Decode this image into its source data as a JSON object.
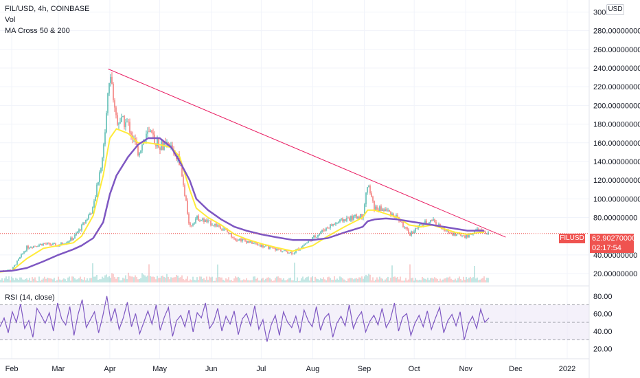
{
  "legend": {
    "symbol_line": "FIL/USD, 4h, COINBASE",
    "volume": "Vol",
    "ma": "MA Cross 50 & 200",
    "rsi": "RSI (14, close)"
  },
  "price_axis": {
    "currency_badge": "USD",
    "labels": [
      "300.00000000",
      "280.00000000",
      "260.00000000",
      "240.00000000",
      "220.00000000",
      "200.00000000",
      "180.00000000",
      "160.00000000",
      "140.00000000",
      "120.00000000",
      "100.00000000",
      "80.00000000",
      "40.00000000",
      "20.00000000"
    ]
  },
  "last_price": {
    "symbol_tag": "FILUSD",
    "value": "62.90270000",
    "countdown": "02:17:54"
  },
  "rsi_axis": {
    "labels": [
      "80.00",
      "60.00",
      "40.00",
      "20.00"
    ]
  },
  "time_axis": {
    "labels": [
      "Feb",
      "Mar",
      "Apr",
      "May",
      "Jun",
      "Jul",
      "Aug",
      "Sep",
      "Oct",
      "Nov",
      "Dec",
      "2022"
    ]
  },
  "colors": {
    "up": "#26a69a",
    "down": "#ef5350",
    "ma50": "#ffeb3b",
    "ma200": "#7e57c2",
    "trendline": "#e91e63",
    "rsi": "#7e57c2",
    "rsi_band": "#ede7f6"
  },
  "chart_data": [
    {
      "type": "line",
      "title": "FIL/USD, 4h, COINBASE",
      "x": [
        "2021-01-20",
        "2021-02-01",
        "2021-02-10",
        "2021-02-20",
        "2021-03-01",
        "2021-03-10",
        "2021-03-15",
        "2021-03-22",
        "2021-03-28",
        "2021-04-01",
        "2021-04-05",
        "2021-04-12",
        "2021-04-18",
        "2021-04-24",
        "2021-05-01",
        "2021-05-08",
        "2021-05-13",
        "2021-05-19",
        "2021-05-23",
        "2021-05-30",
        "2021-06-07",
        "2021-06-15",
        "2021-06-22",
        "2021-07-01",
        "2021-07-10",
        "2021-07-20",
        "2021-08-01",
        "2021-08-10",
        "2021-08-20",
        "2021-08-31",
        "2021-09-03",
        "2021-09-07",
        "2021-09-14",
        "2021-09-21",
        "2021-09-28",
        "2021-10-05",
        "2021-10-12",
        "2021-10-19",
        "2021-10-26",
        "2021-11-02",
        "2021-11-09",
        "2021-11-12"
      ],
      "series": [
        {
          "name": "FILUSD",
          "values": [
            22,
            24,
            48,
            52,
            50,
            58,
            70,
            90,
            150,
            236,
            185,
            180,
            150,
            170,
            158,
            155,
            140,
            70,
            80,
            75,
            70,
            58,
            55,
            50,
            46,
            42,
            58,
            70,
            78,
            82,
            115,
            90,
            88,
            80,
            62,
            72,
            78,
            66,
            62,
            60,
            68,
            62.9
          ]
        },
        {
          "name": "MA 50",
          "values": [
            21,
            23,
            36,
            47,
            50,
            53,
            60,
            82,
            125,
            165,
            175,
            170,
            160,
            160,
            158,
            155,
            145,
            110,
            90,
            80,
            72,
            62,
            57,
            52,
            48,
            44,
            50,
            60,
            70,
            80,
            88,
            88,
            84,
            80,
            72,
            70,
            72,
            68,
            64,
            62,
            64,
            64
          ]
        },
        {
          "name": "MA 200",
          "values": [
            22,
            23,
            26,
            33,
            40,
            46,
            50,
            58,
            75,
            105,
            125,
            145,
            158,
            165,
            165,
            155,
            140,
            120,
            100,
            88,
            78,
            70,
            66,
            62,
            59,
            56,
            56,
            58,
            64,
            70,
            76,
            78,
            79,
            78,
            76,
            74,
            72,
            70,
            68,
            66,
            66,
            66
          ]
        }
      ],
      "annotations": [
        {
          "type": "trendline",
          "from": [
            "2021-03-31",
            239
          ],
          "to": [
            "2021-11-25",
            59
          ]
        },
        {
          "type": "horizontal-line",
          "value": 62.9
        }
      ],
      "ylim": [
        12,
        304
      ],
      "y_ticks": [
        20,
        40,
        80,
        100,
        120,
        140,
        160,
        180,
        200,
        220,
        240,
        260,
        280,
        300
      ],
      "x_ticks": [
        "Feb",
        "Mar",
        "Apr",
        "May",
        "Jun",
        "Jul",
        "Aug",
        "Sep",
        "Oct",
        "Nov",
        "Dec",
        "2022"
      ]
    },
    {
      "type": "line",
      "title": "RSI (14, close)",
      "ylim": [
        10,
        90
      ],
      "bands": {
        "upper": 70,
        "middle": 50,
        "lower": 30
      },
      "y_ticks": [
        20,
        40,
        60,
        80
      ],
      "series": [
        {
          "name": "RSI",
          "values": [
            45,
            55,
            38,
            62,
            50,
            71,
            43,
            52,
            33,
            66,
            58,
            49,
            61,
            40,
            72,
            54,
            47,
            68,
            35,
            59,
            76,
            44,
            53,
            62,
            38,
            57,
            80,
            51,
            66,
            42,
            55,
            73,
            45,
            60,
            37,
            50,
            63,
            48,
            70,
            41,
            56,
            67,
            34,
            52,
            58,
            45,
            64,
            39,
            61,
            55,
            72,
            43,
            50,
            66,
            40,
            57,
            48,
            63,
            36,
            54,
            60,
            46,
            69,
            42,
            53,
            28,
            47,
            58,
            35,
            62,
            50,
            44,
            57,
            38,
            64,
            52,
            45,
            68,
            41,
            55,
            60,
            33,
            49,
            57,
            46,
            70,
            43,
            55,
            62,
            39,
            51,
            58,
            47,
            66,
            44,
            53,
            72,
            40,
            56,
            60,
            35,
            49,
            58,
            45,
            63,
            42,
            55,
            67,
            38,
            52,
            59,
            46,
            62,
            30,
            48,
            57,
            43,
            65,
            50,
            55
          ]
        }
      ]
    }
  ]
}
